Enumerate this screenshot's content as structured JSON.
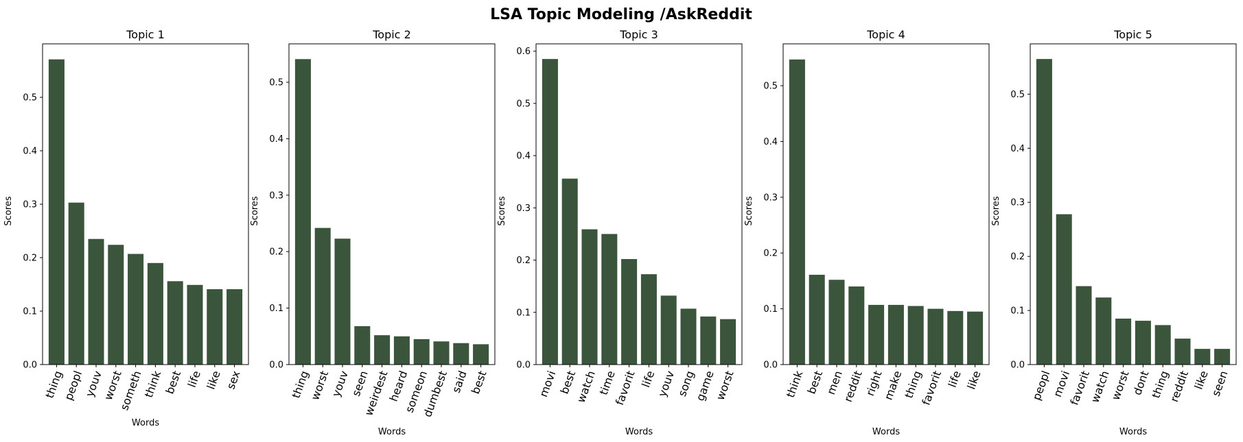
{
  "suptitle": "LSA Topic Modeling /AskReddit",
  "bar_color": "#3b553c",
  "chart_data": [
    {
      "type": "bar",
      "title": "Topic 1",
      "xlabel": "Words",
      "ylabel": "Scores",
      "categories": [
        "thing",
        "peopl",
        "youv",
        "worst",
        "someth",
        "think",
        "best",
        "life",
        "like",
        "sex"
      ],
      "values": [
        0.571,
        0.303,
        0.235,
        0.224,
        0.207,
        0.19,
        0.156,
        0.149,
        0.141,
        0.141
      ],
      "ylim": [
        0,
        0.6
      ],
      "yticks": [
        "0.0",
        "0.1",
        "0.2",
        "0.3",
        "0.4",
        "0.5"
      ]
    },
    {
      "type": "bar",
      "title": "Topic 2",
      "xlabel": "Words",
      "ylabel": "Scores",
      "categories": [
        "thing",
        "worst",
        "youv",
        "seen",
        "weirdest",
        "heard",
        "someon",
        "dumbest",
        "said",
        "best"
      ],
      "values": [
        0.541,
        0.242,
        0.223,
        0.068,
        0.052,
        0.05,
        0.045,
        0.041,
        0.038,
        0.036
      ],
      "ylim": [
        0,
        0.568
      ],
      "yticks": [
        "0.0",
        "0.1",
        "0.2",
        "0.3",
        "0.4",
        "0.5"
      ]
    },
    {
      "type": "bar",
      "title": "Topic 3",
      "xlabel": "Words",
      "ylabel": "Scores",
      "categories": [
        "movi",
        "best",
        "watch",
        "time",
        "favorit",
        "life",
        "youv",
        "song",
        "game",
        "worst"
      ],
      "values": [
        0.585,
        0.356,
        0.259,
        0.25,
        0.202,
        0.173,
        0.132,
        0.107,
        0.092,
        0.087
      ],
      "ylim": [
        0,
        0.614
      ],
      "yticks": [
        "0.0",
        "0.1",
        "0.2",
        "0.3",
        "0.4",
        "0.5",
        "0.6"
      ]
    },
    {
      "type": "bar",
      "title": "Topic 4",
      "xlabel": "Words",
      "ylabel": "Scores",
      "categories": [
        "think",
        "best",
        "men",
        "reddit",
        "right",
        "make",
        "thing",
        "favorit",
        "life",
        "like"
      ],
      "values": [
        0.547,
        0.161,
        0.152,
        0.14,
        0.107,
        0.107,
        0.105,
        0.1,
        0.096,
        0.095
      ],
      "ylim": [
        0,
        0.575
      ],
      "yticks": [
        "0.0",
        "0.1",
        "0.2",
        "0.3",
        "0.4",
        "0.5"
      ]
    },
    {
      "type": "bar",
      "title": "Topic 5",
      "xlabel": "Words",
      "ylabel": "Scores",
      "categories": [
        "peopl",
        "movi",
        "favorit",
        "watch",
        "worst",
        "dont",
        "thing",
        "reddit",
        "like",
        "seen"
      ],
      "values": [
        0.565,
        0.278,
        0.145,
        0.124,
        0.085,
        0.081,
        0.073,
        0.048,
        0.029,
        0.029
      ],
      "ylim": [
        0,
        0.593
      ],
      "yticks": [
        "0.0",
        "0.1",
        "0.2",
        "0.3",
        "0.4",
        "0.5"
      ]
    }
  ]
}
